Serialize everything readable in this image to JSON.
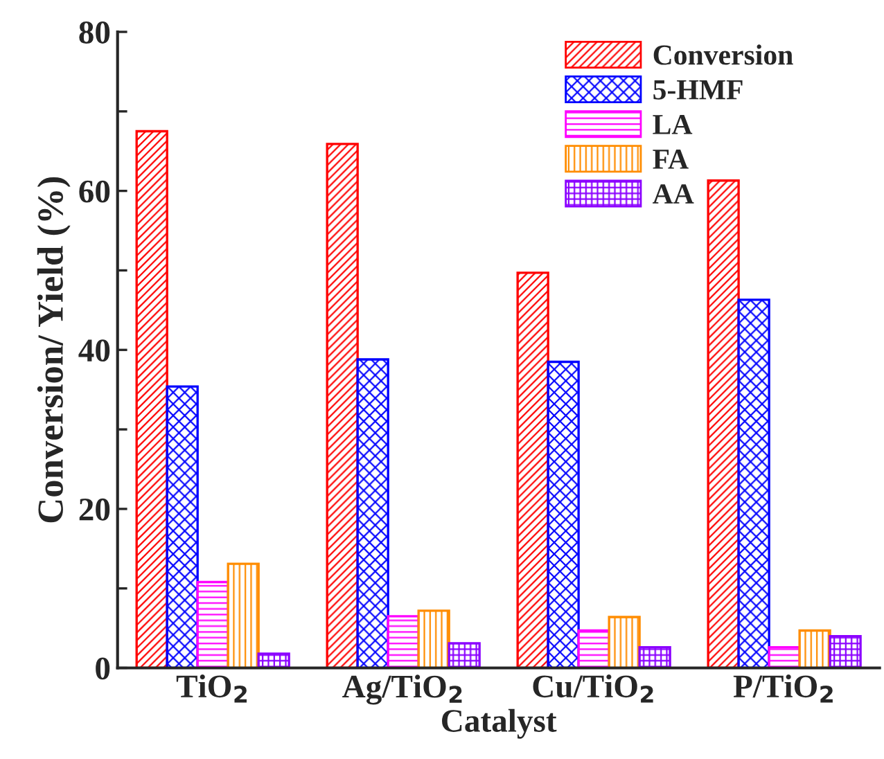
{
  "chart_data": {
    "type": "bar",
    "xlabel": "Catalyst",
    "ylabel": "Conversion/ Yield (%)",
    "categories": [
      "TiO$_{2}$",
      "Ag/TiO$_{2}$",
      "Cu/TiO$_{2}$",
      "P/TiO$_{2}$"
    ],
    "series": [
      {
        "name": "Conversion",
        "color": "#ff0000",
        "values": [
          67.5,
          65.9,
          49.7,
          61.3
        ]
      },
      {
        "name": "5-HMF",
        "color": "#0000ff",
        "values": [
          35.4,
          38.8,
          38.5,
          46.3
        ]
      },
      {
        "name": "LA",
        "color": "#ff00ff",
        "values": [
          10.8,
          6.5,
          4.7,
          2.6
        ]
      },
      {
        "name": "FA",
        "color": "#ff8c00",
        "values": [
          13.1,
          7.2,
          6.4,
          4.7
        ]
      },
      {
        "name": "AA",
        "color": "#8b00ff",
        "values": [
          1.8,
          3.1,
          2.6,
          4.0
        ]
      }
    ],
    "ylim": [
      0,
      80
    ],
    "yticks": [
      0,
      {
        "value": 10,
        "label": null
      },
      20,
      {
        "value": 30,
        "label": null
      },
      40,
      {
        "value": 50,
        "label": null
      },
      60,
      {
        "value": 70,
        "label": null
      },
      80
    ],
    "legend": "top right",
    "grid": false
  }
}
